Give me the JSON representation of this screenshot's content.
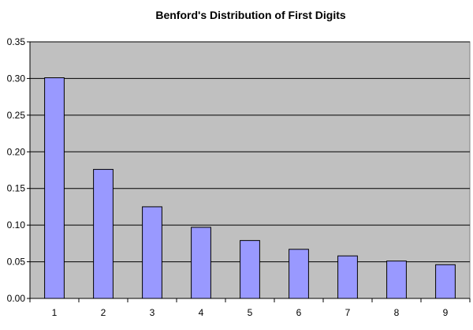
{
  "chart_data": {
    "type": "bar",
    "title": "Benford's Distribution of First Digits",
    "xlabel": "",
    "ylabel": "",
    "categories": [
      "1",
      "2",
      "3",
      "4",
      "5",
      "6",
      "7",
      "8",
      "9"
    ],
    "values": [
      0.301,
      0.176,
      0.125,
      0.097,
      0.079,
      0.067,
      0.058,
      0.051,
      0.046
    ],
    "ylim": [
      0,
      0.35
    ],
    "yticks": [
      "0.00",
      "0.05",
      "0.10",
      "0.15",
      "0.20",
      "0.25",
      "0.30",
      "0.35"
    ],
    "grid": true,
    "legend": "none",
    "colors": {
      "bar_fill": "#9999ff",
      "bar_stroke": "#000000",
      "plot_background": "#c0c0c0",
      "gridline": "#000000"
    }
  }
}
